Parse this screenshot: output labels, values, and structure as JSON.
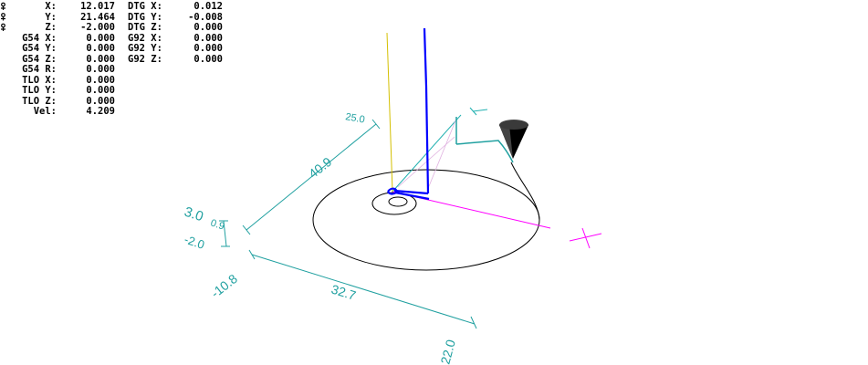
{
  "dro": {
    "rows": [
      {
        "label": "X:",
        "value": "12.017",
        "label2": "DTG X:",
        "value2": "0.012"
      },
      {
        "label": "Y:",
        "value": "21.464",
        "label2": "DTG Y:",
        "value2": "-0.008"
      },
      {
        "label": "Z:",
        "value": "-2.000",
        "label2": "DTG Z:",
        "value2": "0.000"
      },
      {
        "label": "G54 X:",
        "value": "0.000",
        "label2": "G92 X:",
        "value2": "0.000"
      },
      {
        "label": "G54 Y:",
        "value": "0.000",
        "label2": "G92 Y:",
        "value2": "0.000"
      },
      {
        "label": "G54 Z:",
        "value": "0.000",
        "label2": "G92 Z:",
        "value2": "0.000"
      },
      {
        "label": "G54 R:",
        "value": "0.000",
        "label2": "",
        "value2": ""
      },
      {
        "label": "TLO X:",
        "value": "0.000",
        "label2": "",
        "value2": ""
      },
      {
        "label": "TLO Y:",
        "value": "0.000",
        "label2": "",
        "value2": ""
      },
      {
        "label": "TLO Z:",
        "value": "0.000",
        "label2": "",
        "value2": ""
      },
      {
        "label": "Vel:",
        "value": "4.209",
        "label2": "",
        "value2": ""
      }
    ],
    "homed_icon": "homed-icon"
  },
  "dimensions": {
    "x_extent": "32.7",
    "x_min": "-10.8",
    "x_max": "22.0",
    "y_extent": "40.9",
    "y_max": "25.0",
    "z_extent": "3.0",
    "z_value": "-2.0",
    "z_value2": "0.9"
  },
  "colors": {
    "dimension": "#20a0a0",
    "program_path": "#000000",
    "tool_path": "#0000ff",
    "x_axis": "#ff00ff",
    "y_axis": "#20b0b0",
    "z_axis": "#d4c000",
    "tool_cone": "#000000"
  }
}
